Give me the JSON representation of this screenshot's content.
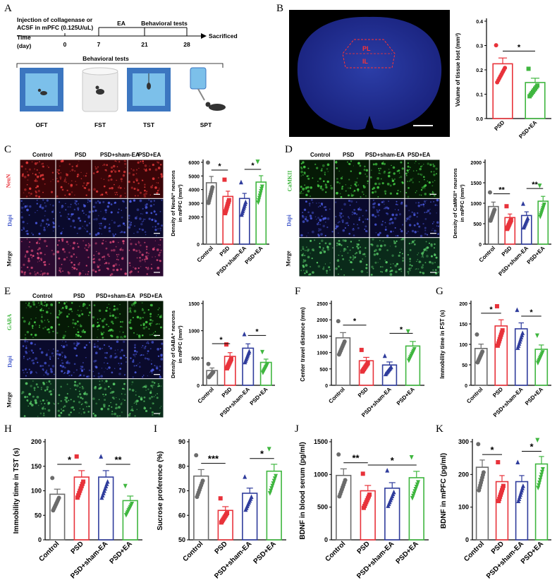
{
  "panel_letters": {
    "A": "A",
    "B": "B",
    "C": "C",
    "D": "D",
    "E": "E",
    "F": "F",
    "G": "G",
    "H": "H",
    "I": "I",
    "J": "J",
    "K": "K"
  },
  "colors": {
    "Control": "#6b6b6b",
    "PSD": "#e8323a",
    "PSD+sham-EA": "#2f3c9c",
    "PSD+EA": "#3fb63f"
  },
  "timeline": {
    "injection_line1": "Injection of collagenase or",
    "injection_line2": "ACSF in mPFC (0.125U/uL)",
    "time_label": "Time",
    "day_label": "(day)",
    "ticks": [
      "0",
      "7",
      "21",
      "28"
    ],
    "ea_label": "EA",
    "behavioral_label": "Behavioral tests",
    "sacrificed_label": "Sacrificed",
    "tests_header": "Behavioral tests",
    "tests": [
      "OFT",
      "FST",
      "TST",
      "SPT"
    ]
  },
  "brain": {
    "pl_label": "PL",
    "il_label": "IL"
  },
  "staining": {
    "C": {
      "columns": [
        "Control",
        "PSD",
        "PSD+sham-EA",
        "PSD+EA"
      ],
      "rows": [
        "NeuN",
        "Dapi",
        "Merge"
      ]
    },
    "D": {
      "columns": [
        "Control",
        "PSD",
        "PSD+sham-EA",
        "PSD+EA"
      ],
      "rows": [
        "CaMKII",
        "Dapi",
        "Merge"
      ]
    },
    "E": {
      "columns": [
        "Control",
        "PSD",
        "PSD+sham-EA",
        "PSD+EA"
      ],
      "rows": [
        "GABA",
        "Dapi",
        "Merge"
      ]
    }
  },
  "chart_data": [
    {
      "panel": "B",
      "type": "bar",
      "categories": [
        "PSD",
        "PSD+EA"
      ],
      "values": [
        0.225,
        0.148
      ],
      "ylabel": "Volume of tissue lost (mm³)",
      "ylim": [
        0,
        0.4
      ],
      "yticks": [
        "0.0",
        "0.1",
        "0.2",
        "0.3",
        "0.4"
      ],
      "significance": [
        {
          "pair": [
            0,
            1
          ],
          "label": "*"
        }
      ]
    },
    {
      "panel": "C",
      "type": "bar",
      "categories": [
        "Control",
        "PSD",
        "PSD+sham-EA",
        "PSD+EA"
      ],
      "values": [
        4500,
        3500,
        3350,
        4550
      ],
      "ylabel_line1": "Density of NeuN⁺ neurons",
      "ylabel_line2": "in mPFC (mm³)",
      "ylim": [
        0,
        6000
      ],
      "yticks": [
        "0",
        "2000",
        "3000",
        "4000",
        "5000",
        "6000"
      ],
      "significance": [
        {
          "pair": [
            0,
            1
          ],
          "label": "*"
        },
        {
          "pair": [
            2,
            3
          ],
          "label": "*"
        }
      ]
    },
    {
      "panel": "D",
      "type": "bar",
      "categories": [
        "Control",
        "PSD",
        "PSD+sham-EA",
        "PSD+EA"
      ],
      "values": [
        920,
        650,
        700,
        1050
      ],
      "ylabel_line1": "Density of CaMKII⁺ neurons",
      "ylabel_line2": "in mPFC (mm³)",
      "ylim": [
        0,
        2000
      ],
      "yticks": [
        "0",
        "500",
        "1000",
        "1500",
        "2000"
      ],
      "significance": [
        {
          "pair": [
            0,
            1
          ],
          "label": "**"
        },
        {
          "pair": [
            2,
            3
          ],
          "label": "**"
        }
      ]
    },
    {
      "panel": "E",
      "type": "bar",
      "categories": [
        "Control",
        "PSD",
        "PSD+sham-EA",
        "PSD+EA"
      ],
      "values": [
        270,
        530,
        680,
        420
      ],
      "ylabel_line1": "Density of GABA⁺ neurons",
      "ylabel_line2": "in mPFC (mm³)",
      "ylim": [
        0,
        1500
      ],
      "yticks": [
        "0",
        "500",
        "1000",
        "1500"
      ],
      "significance": [
        {
          "pair": [
            0,
            1
          ],
          "label": "*"
        },
        {
          "pair": [
            2,
            3
          ],
          "label": "*"
        }
      ]
    },
    {
      "panel": "F",
      "type": "bar",
      "categories": [
        "Control",
        "PSD",
        "PSD+sham-EA",
        "PSD+EA"
      ],
      "values": [
        1450,
        750,
        620,
        1200
      ],
      "ylabel": "Center travel distance (mm)",
      "ylim": [
        0,
        2500
      ],
      "yticks": [
        "0",
        "500",
        "1000",
        "1500",
        "2000",
        "2500"
      ],
      "significance": [
        {
          "pair": [
            0,
            1
          ],
          "label": "*"
        },
        {
          "pair": [
            2,
            3
          ],
          "label": "*"
        }
      ]
    },
    {
      "panel": "G",
      "type": "bar",
      "categories": [
        "Control",
        "PSD",
        "PSD+sham-EA",
        "PSD+EA"
      ],
      "values": [
        90,
        145,
        138,
        88
      ],
      "ylabel": "Immobility time in FST (s)",
      "ylim": [
        0,
        200
      ],
      "yticks": [
        "0",
        "50",
        "100",
        "150",
        "200"
      ],
      "significance": [
        {
          "pair": [
            0,
            1
          ],
          "label": "*"
        },
        {
          "pair": [
            2,
            3
          ],
          "label": "*"
        }
      ]
    },
    {
      "panel": "H",
      "type": "bar",
      "categories": [
        "Control",
        "PSD",
        "PSD+sham-EA",
        "PSD+EA"
      ],
      "values": [
        93,
        128,
        128,
        80
      ],
      "ylabel": "Immobility time in TST (s)",
      "ylim": [
        0,
        200
      ],
      "yticks": [
        "0",
        "50",
        "100",
        "150",
        "200"
      ],
      "significance": [
        {
          "pair": [
            0,
            1
          ],
          "label": "*"
        },
        {
          "pair": [
            2,
            3
          ],
          "label": "**"
        }
      ]
    },
    {
      "panel": "I",
      "type": "bar",
      "categories": [
        "Control",
        "PSD",
        "PSD+sham-EA",
        "PSD+EA"
      ],
      "values": [
        76,
        62,
        69,
        78
      ],
      "ylabel": "Sucrose proference (%)",
      "ylim": [
        50,
        90
      ],
      "yticks": [
        "50",
        "60",
        "70",
        "80",
        "90"
      ],
      "significance": [
        {
          "pair": [
            0,
            1
          ],
          "label": "***"
        },
        {
          "pair": [
            2,
            3
          ],
          "label": "*"
        }
      ]
    },
    {
      "panel": "J",
      "type": "bar",
      "categories": [
        "Control",
        "PSD",
        "PSD+sham-EA",
        "PSD+EA"
      ],
      "values": [
        985,
        750,
        790,
        950
      ],
      "ylabel": "BDNF in blood serum (pg/ml)",
      "ylim": [
        0,
        1500
      ],
      "yticks": [
        "0",
        "500",
        "1000",
        "1500"
      ],
      "significance": [
        {
          "pair": [
            0,
            1
          ],
          "label": "**"
        },
        {
          "pair": [
            1,
            3
          ],
          "label": "*"
        }
      ]
    },
    {
      "panel": "K",
      "type": "bar",
      "categories": [
        "Control",
        "PSD",
        "PSD+sham-EA",
        "PSD+EA"
      ],
      "values": [
        222,
        178,
        178,
        232
      ],
      "ylabel": "BDNF in mPFC (pg/ml)",
      "ylim": [
        0,
        300
      ],
      "yticks": [
        "0",
        "100",
        "200",
        "300"
      ],
      "significance": [
        {
          "pair": [
            0,
            1
          ],
          "label": "*"
        },
        {
          "pair": [
            2,
            3
          ],
          "label": "*"
        }
      ]
    }
  ]
}
